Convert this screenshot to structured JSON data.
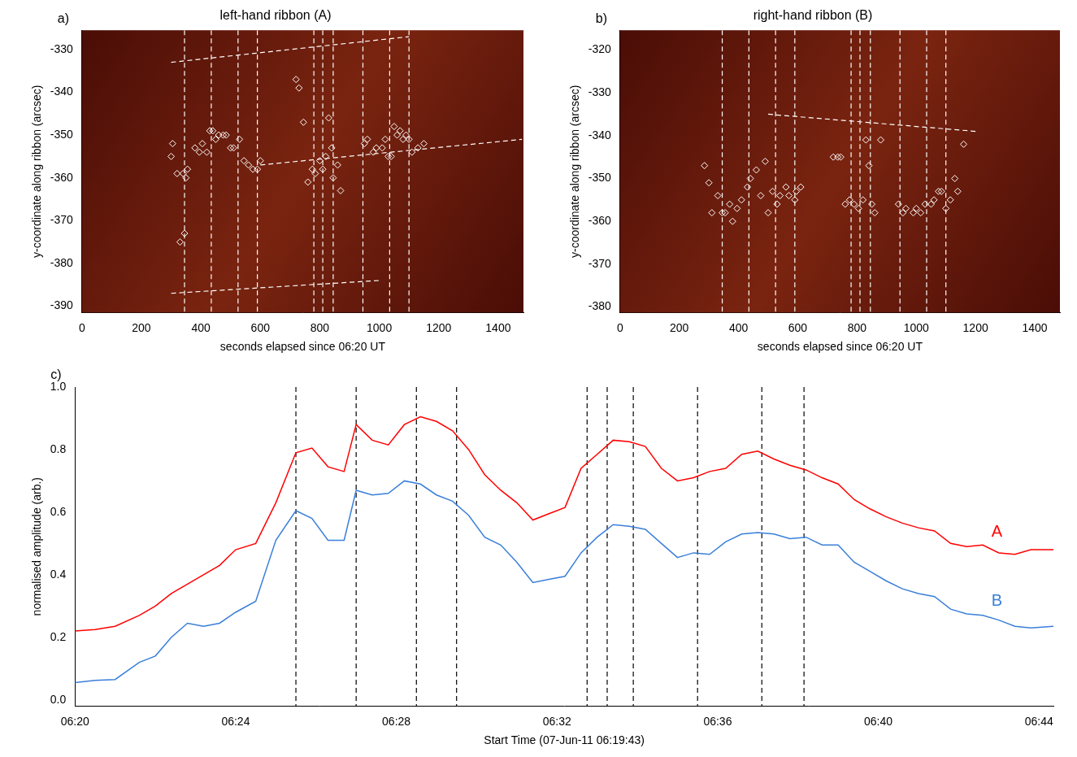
{
  "chart_data": [
    {
      "type": "scatter",
      "title": "left-hand ribbon (A)",
      "panel_label": "a)",
      "x_label": "seconds elapsed since 06:20 UT",
      "y_label": "y-coordinate along ribbon (arcsec)",
      "xlim": [
        0,
        1485
      ],
      "xticks": [
        0,
        200,
        400,
        600,
        800,
        1000,
        1200,
        1400
      ],
      "ylim": [
        -391.5,
        -325.5
      ],
      "yticks": [
        -390,
        -380,
        -370,
        -360,
        -350,
        -340,
        -330
      ],
      "grid": false,
      "marker": "diamond",
      "color": "#ffffff",
      "x": [
        305,
        300,
        320,
        340,
        350,
        355,
        330,
        345,
        380,
        395,
        405,
        420,
        430,
        440,
        450,
        460,
        475,
        485,
        500,
        510,
        530,
        545,
        560,
        575,
        590,
        600,
        720,
        730,
        745,
        760,
        775,
        785,
        800,
        810,
        820,
        830,
        840,
        845,
        860,
        870,
        950,
        960,
        980,
        990,
        1010,
        1020,
        1030,
        1040,
        1050,
        1060,
        1070,
        1080,
        1090,
        1100,
        1110,
        1130,
        1150
      ],
      "values": [
        -352,
        -355,
        -359,
        -359,
        -360,
        -358,
        -375,
        -373,
        -353,
        -354,
        -352,
        -354,
        -349,
        -349,
        -351,
        -350,
        -350,
        -350,
        -353,
        -353,
        -351,
        -356,
        -357,
        -358,
        -358,
        -356,
        -337,
        -339,
        -347,
        -361,
        -358,
        -359,
        -356,
        -358,
        -355,
        -346,
        -353,
        -360,
        -357,
        -363,
        -352,
        -351,
        -354,
        -353,
        -353,
        -351,
        -355,
        -355,
        -348,
        -350,
        -349,
        -351,
        -350,
        -351,
        -354,
        -353,
        -352
      ],
      "vlines": {
        "x": [
          345,
          435,
          525,
          590,
          780,
          810,
          845,
          945,
          1035,
          1100
        ],
        "color": "#ffffff",
        "line_style": "dashed"
      },
      "lines": {
        "color": "#ffffff",
        "line_style": "dashed",
        "segments": [
          {
            "x": [
              300,
              1100
            ],
            "y": [
              -333,
              -327
            ]
          },
          {
            "x": [
              600,
              1480
            ],
            "y": [
              -357,
              -351
            ]
          },
          {
            "x": [
              300,
              1000
            ],
            "y": [
              -387,
              -384
            ]
          }
        ]
      }
    },
    {
      "type": "scatter",
      "title": "right-hand ribbon (B)",
      "panel_label": "b)",
      "x_label": "seconds elapsed since 06:20 UT",
      "y_label": "y-coordinate along ribbon (arcsec)",
      "xlim": [
        0,
        1485
      ],
      "xticks": [
        0,
        200,
        400,
        600,
        800,
        1000,
        1200,
        1400
      ],
      "ylim": [
        -381.3,
        -315.4
      ],
      "yticks": [
        -380,
        -370,
        -360,
        -350,
        -340,
        -330,
        -320
      ],
      "grid": false,
      "marker": "diamond",
      "color": "#ffffff",
      "x": [
        285,
        300,
        310,
        330,
        345,
        355,
        370,
        380,
        395,
        410,
        430,
        440,
        460,
        475,
        490,
        500,
        515,
        530,
        540,
        560,
        570,
        590,
        595,
        610,
        720,
        735,
        745,
        760,
        775,
        790,
        805,
        820,
        830,
        840,
        850,
        860,
        880,
        940,
        955,
        965,
        990,
        1000,
        1015,
        1030,
        1050,
        1060,
        1075,
        1085,
        1100,
        1115,
        1130,
        1140,
        1160
      ],
      "values": [
        -347,
        -351,
        -358,
        -354,
        -358,
        -358,
        -356,
        -360,
        -357,
        -355,
        -352,
        -350,
        -348,
        -354,
        -346,
        -358,
        -353,
        -356,
        -354,
        -352,
        -354,
        -355,
        -353,
        -352,
        -345,
        -345,
        -345,
        -356,
        -355,
        -356,
        -357,
        -355,
        -341,
        -347,
        -356,
        -358,
        -341,
        -356,
        -358,
        -357,
        -358,
        -357,
        -358,
        -356,
        -356,
        -355,
        -353,
        -353,
        -357,
        -355,
        -350,
        -353,
        -342
      ],
      "vlines": {
        "x": [
          345,
          435,
          525,
          590,
          780,
          810,
          845,
          945,
          1035,
          1100
        ],
        "color": "#ffffff",
        "line_style": "dashed"
      },
      "lines": {
        "color": "#ffffff",
        "line_style": "dashed",
        "segments": [
          {
            "x": [
              500,
              1200
            ],
            "y": [
              -335,
              -339
            ]
          }
        ]
      }
    },
    {
      "type": "line",
      "panel_label": "c)",
      "x_label": "Start Time (07-Jun-11 06:19:43)",
      "y_label": "normalised amplitude (arb.)",
      "xlim": [
        0,
        24.36
      ],
      "xticks": [
        {
          "value": 0,
          "label": "06:20"
        },
        {
          "value": 4,
          "label": "06:24"
        },
        {
          "value": 8,
          "label": "06:28"
        },
        {
          "value": 12,
          "label": "06:32"
        },
        {
          "value": 16,
          "label": "06:36"
        },
        {
          "value": 20,
          "label": "06:40"
        },
        {
          "value": 24,
          "label": "06:44"
        }
      ],
      "ylim": [
        -0.02,
        1.0
      ],
      "yticks": [
        {
          "value": 0,
          "label": "0.0"
        },
        {
          "value": 0.2,
          "label": "0.2"
        },
        {
          "value": 0.4,
          "label": "0.4"
        },
        {
          "value": 0.6,
          "label": "0.6"
        },
        {
          "value": 0.8,
          "label": "0.8"
        },
        {
          "value": 1.0,
          "label": "1.0"
        }
      ],
      "grid": false,
      "x": [
        0,
        0.5,
        1.0,
        1.6,
        2.0,
        2.4,
        2.8,
        3.2,
        3.6,
        4.0,
        4.5,
        5.0,
        5.5,
        5.9,
        6.3,
        6.7,
        7.0,
        7.4,
        7.8,
        8.2,
        8.6,
        9.0,
        9.4,
        9.8,
        10.2,
        10.6,
        11.0,
        11.4,
        11.8,
        12.2,
        12.6,
        13.0,
        13.4,
        13.8,
        14.2,
        14.6,
        15.0,
        15.4,
        15.8,
        16.2,
        16.6,
        17.0,
        17.4,
        17.8,
        18.2,
        18.6,
        19.0,
        19.4,
        19.8,
        20.2,
        20.6,
        21.0,
        21.4,
        21.8,
        22.2,
        22.6,
        23.0,
        23.4,
        23.8,
        24.36
      ],
      "series": [
        {
          "name": "A",
          "color": "#ff0000",
          "label_position": {
            "x": 22.95,
            "y": 0.51
          },
          "values": [
            0.22,
            0.225,
            0.235,
            0.27,
            0.3,
            0.34,
            0.37,
            0.4,
            0.43,
            0.48,
            0.5,
            0.63,
            0.79,
            0.805,
            0.745,
            0.73,
            0.88,
            0.83,
            0.815,
            0.88,
            0.905,
            0.89,
            0.86,
            0.8,
            0.72,
            0.67,
            0.63,
            0.575,
            0.595,
            0.615,
            0.74,
            0.785,
            0.83,
            0.825,
            0.81,
            0.74,
            0.7,
            0.71,
            0.73,
            0.74,
            0.785,
            0.795,
            0.77,
            0.75,
            0.735,
            0.71,
            0.69,
            0.64,
            0.61,
            0.585,
            0.565,
            0.55,
            0.54,
            0.5,
            0.49,
            0.495,
            0.47,
            0.465,
            0.48,
            0.48
          ]
        },
        {
          "name": "B",
          "color": "#3a7fd9",
          "label_position": {
            "x": 22.95,
            "y": 0.29
          },
          "values": [
            0.055,
            0.062,
            0.065,
            0.12,
            0.14,
            0.2,
            0.245,
            0.235,
            0.245,
            0.28,
            0.315,
            0.51,
            0.605,
            0.58,
            0.51,
            0.51,
            0.67,
            0.655,
            0.66,
            0.7,
            0.69,
            0.655,
            0.635,
            0.59,
            0.52,
            0.495,
            0.44,
            0.375,
            0.385,
            0.395,
            0.47,
            0.52,
            0.56,
            0.555,
            0.545,
            0.5,
            0.455,
            0.47,
            0.465,
            0.505,
            0.53,
            0.535,
            0.53,
            0.515,
            0.52,
            0.495,
            0.495,
            0.44,
            0.41,
            0.38,
            0.355,
            0.34,
            0.33,
            0.29,
            0.275,
            0.27,
            0.255,
            0.235,
            0.23,
            0.235
          ]
        }
      ],
      "vlines": {
        "x": [
          5.5,
          7.0,
          8.5,
          9.5,
          12.75,
          13.25,
          13.9,
          15.5,
          17.1,
          18.15
        ],
        "color": "#000000",
        "line_style": "dashed"
      }
    }
  ]
}
